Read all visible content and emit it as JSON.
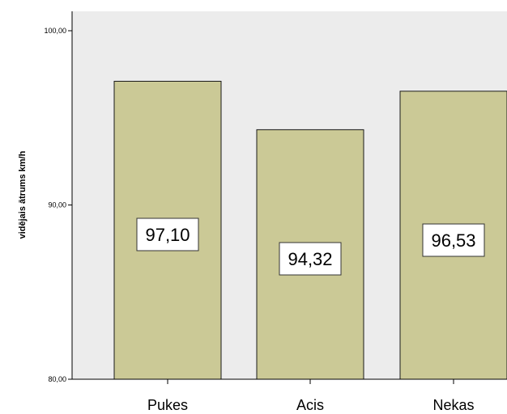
{
  "chart_data": {
    "type": "bar",
    "categories": [
      "Pukes",
      "Acis",
      "Nekas"
    ],
    "values": [
      97.1,
      94.32,
      96.53
    ],
    "data_labels": [
      "97,10",
      "94,32",
      "96,53"
    ],
    "title": "",
    "xlabel": "",
    "ylabel": "vidējais ātrums km/h",
    "ylim": [
      80,
      100
    ],
    "yticks": [
      80,
      90,
      100
    ],
    "ytick_labels": [
      "80,00",
      "90,00",
      "100,00"
    ],
    "grid": false,
    "colors": {
      "plot_background": "#ececec",
      "bar_fill": "#cbc996",
      "bar_stroke": "#1a1a1a"
    }
  }
}
